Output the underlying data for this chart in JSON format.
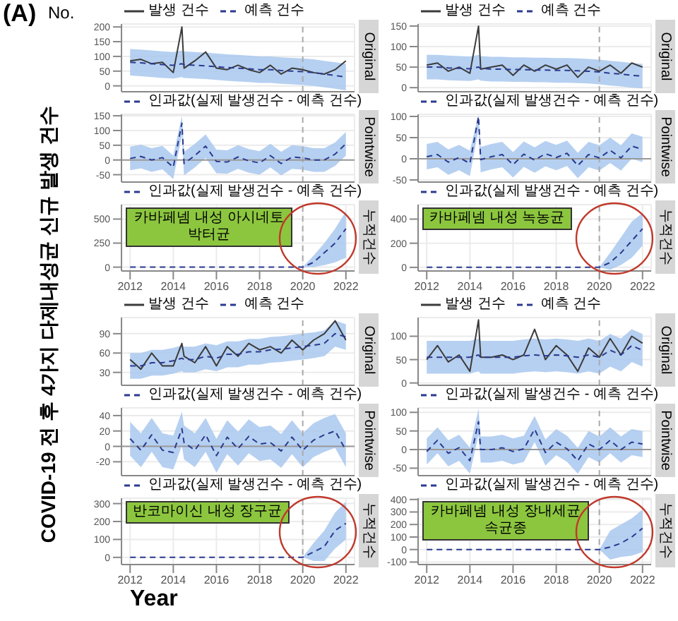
{
  "chart_data": [
    {
      "type": "line",
      "title": "Original",
      "ylabel": "COVID-19 전 후 4가지 다제내성균 신규 발생 건수",
      "annotations": [
        "(A)",
        "No."
      ],
      "legend": "top left",
      "grid": true,
      "tick_labels": "y",
      "xlim": [
        2011.6,
        2022.4
      ],
      "xticks": [
        2012,
        2014,
        2016,
        2018,
        2020,
        2022
      ],
      "ylim": [
        -20,
        210
      ],
      "yticks": [
        0,
        50,
        100,
        150,
        200
      ],
      "ref_lines": [
        {
          "axis": "x",
          "value": 2020,
          "color": "#aaaaaa",
          "line_style": "dashed"
        }
      ],
      "x": [
        2012,
        2012.5,
        2013,
        2013.5,
        2014,
        2014.4,
        2014.5,
        2015,
        2015.5,
        2016,
        2016.5,
        2017,
        2017.5,
        2018,
        2018.5,
        2019,
        2019.5,
        2020,
        2020.5,
        2021,
        2021.5,
        2022
      ],
      "series": [
        {
          "name": "발생 건수",
          "color": "#3b3b3b",
          "line_style": "solid",
          "values": [
            85,
            90,
            75,
            80,
            45,
            200,
            60,
            85,
            115,
            60,
            55,
            70,
            55,
            45,
            70,
            40,
            60,
            55,
            45,
            40,
            55,
            85
          ]
        },
        {
          "name": "예측 건수",
          "color": "#2b3a8f",
          "line_style": "dashed",
          "values": [
            80,
            78,
            75,
            72,
            70,
            75,
            72,
            70,
            68,
            65,
            62,
            60,
            58,
            55,
            55,
            52,
            50,
            48,
            45,
            40,
            35,
            30
          ],
          "lower": [
            35,
            33,
            30,
            27,
            25,
            30,
            27,
            25,
            23,
            20,
            17,
            15,
            13,
            10,
            10,
            7,
            5,
            3,
            0,
            -5,
            -10,
            -15
          ],
          "upper": [
            125,
            123,
            120,
            117,
            115,
            120,
            117,
            115,
            113,
            110,
            107,
            105,
            103,
            100,
            100,
            97,
            95,
            93,
            90,
            85,
            80,
            75
          ]
        }
      ]
    },
    {
      "type": "line",
      "title": "Pointwise",
      "legend": "top left",
      "grid": true,
      "tick_labels": "y",
      "xlim": [
        2011.6,
        2022.4
      ],
      "xticks": [
        2012,
        2014,
        2016,
        2018,
        2020,
        2022
      ],
      "ylim": [
        -75,
        155
      ],
      "yticks": [
        -50,
        0,
        50,
        100,
        150
      ],
      "ref_lines": [
        {
          "axis": "x",
          "value": 2020,
          "color": "#aaaaaa",
          "line_style": "dashed"
        },
        {
          "axis": "y",
          "value": 0,
          "color": "#999999",
          "line_style": "solid"
        }
      ],
      "x": [
        2012,
        2012.5,
        2013,
        2013.5,
        2014,
        2014.4,
        2014.5,
        2015,
        2015.5,
        2016,
        2016.5,
        2017,
        2017.5,
        2018,
        2018.5,
        2019,
        2019.5,
        2020,
        2020.5,
        2021,
        2021.5,
        2022
      ],
      "series": [
        {
          "name": "인과값(실제 발생건수 - 예측 건수)",
          "color": "#2b3a8f",
          "line_style": "dashed",
          "values": [
            5,
            12,
            0,
            8,
            -25,
            125,
            -12,
            15,
            47,
            -5,
            -7,
            10,
            -3,
            -10,
            15,
            -12,
            10,
            7,
            0,
            0,
            20,
            55
          ],
          "lower": [
            -35,
            -28,
            -40,
            -32,
            -65,
            85,
            -52,
            -25,
            7,
            -45,
            -47,
            -30,
            -43,
            -50,
            -25,
            -52,
            -30,
            -33,
            -40,
            -40,
            -20,
            15
          ],
          "upper": [
            45,
            52,
            40,
            48,
            15,
            150,
            28,
            55,
            87,
            35,
            33,
            50,
            37,
            30,
            55,
            28,
            50,
            47,
            40,
            40,
            60,
            95
          ]
        }
      ]
    },
    {
      "type": "line",
      "title": "누적건수",
      "annotations": [
        "카바페넴 내성 아시네토박터균"
      ],
      "legend": "top left",
      "grid": true,
      "xlim": [
        2011.6,
        2022.4
      ],
      "xticks": [
        2012,
        2014,
        2016,
        2018,
        2020,
        2022
      ],
      "ylim": [
        -40,
        650
      ],
      "yticks": [
        0,
        250,
        500
      ],
      "ref_lines": [
        {
          "axis": "x",
          "value": 2020,
          "color": "#aaaaaa",
          "line_style": "dashed"
        }
      ],
      "x": [
        2012,
        2012.5,
        2013,
        2013.5,
        2014,
        2014.4,
        2014.5,
        2015,
        2015.5,
        2016,
        2016.5,
        2017,
        2017.5,
        2018,
        2018.5,
        2019,
        2019.5,
        2020,
        2020.5,
        2021,
        2021.5,
        2022
      ],
      "series": [
        {
          "name": "인과값(실제 발생건수 - 예측 건수)",
          "color": "#2b3a8f",
          "line_style": "dashed",
          "values": [
            0,
            0,
            0,
            0,
            0,
            0,
            0,
            0,
            0,
            0,
            0,
            0,
            0,
            0,
            0,
            0,
            0,
            0,
            50,
            150,
            250,
            400
          ],
          "lower": [
            0,
            0,
            0,
            0,
            0,
            0,
            0,
            0,
            0,
            0,
            0,
            0,
            0,
            0,
            0,
            0,
            0,
            0,
            0,
            20,
            50,
            100
          ],
          "upper": [
            0,
            0,
            0,
            0,
            0,
            0,
            0,
            0,
            0,
            0,
            0,
            0,
            0,
            0,
            0,
            0,
            0,
            0,
            120,
            250,
            400,
            580
          ]
        }
      ]
    },
    {
      "type": "line",
      "title": "Original",
      "legend": "top left",
      "grid": true,
      "tick_labels": "y",
      "xlim": [
        2011.6,
        2022.4
      ],
      "xticks": [
        2012,
        2014,
        2016,
        2018,
        2020,
        2022
      ],
      "ylim": [
        -10,
        155
      ],
      "yticks": [
        0,
        50,
        100,
        150
      ],
      "ref_lines": [
        {
          "axis": "x",
          "value": 2020,
          "color": "#aaaaaa",
          "line_style": "dashed"
        }
      ],
      "x": [
        2012,
        2012.5,
        2013,
        2013.5,
        2014,
        2014.4,
        2014.5,
        2015,
        2015.5,
        2016,
        2016.5,
        2017,
        2017.5,
        2018,
        2018.5,
        2019,
        2019.5,
        2020,
        2020.5,
        2021,
        2021.5,
        2022
      ],
      "series": [
        {
          "name": "발생 건수",
          "color": "#3b3b3b",
          "line_style": "solid",
          "values": [
            55,
            60,
            40,
            50,
            35,
            150,
            45,
            50,
            55,
            30,
            55,
            40,
            55,
            45,
            55,
            25,
            50,
            40,
            55,
            35,
            60,
            50
          ]
        },
        {
          "name": "예측 건수",
          "color": "#2b3a8f",
          "line_style": "dashed",
          "values": [
            50,
            50,
            48,
            47,
            46,
            50,
            47,
            45,
            45,
            44,
            44,
            43,
            43,
            42,
            42,
            41,
            40,
            38,
            35,
            33,
            30,
            28
          ],
          "lower": [
            20,
            20,
            18,
            17,
            16,
            20,
            17,
            15,
            15,
            14,
            14,
            13,
            13,
            12,
            12,
            11,
            10,
            8,
            5,
            3,
            0,
            -2
          ],
          "upper": [
            80,
            80,
            78,
            77,
            76,
            80,
            77,
            75,
            75,
            74,
            74,
            73,
            73,
            72,
            72,
            71,
            70,
            68,
            65,
            63,
            60,
            58
          ]
        }
      ]
    },
    {
      "type": "line",
      "title": "Pointwise",
      "legend": "top left",
      "grid": true,
      "tick_labels": "y",
      "xlim": [
        2011.6,
        2022.4
      ],
      "xticks": [
        2012,
        2014,
        2016,
        2018,
        2020,
        2022
      ],
      "ylim": [
        -55,
        105
      ],
      "yticks": [
        -50,
        0,
        50,
        100
      ],
      "ref_lines": [
        {
          "axis": "x",
          "value": 2020,
          "color": "#aaaaaa",
          "line_style": "dashed"
        },
        {
          "axis": "y",
          "value": 0,
          "color": "#999999",
          "line_style": "solid"
        }
      ],
      "x": [
        2012,
        2012.5,
        2013,
        2013.5,
        2014,
        2014.4,
        2014.5,
        2015,
        2015.5,
        2016,
        2016.5,
        2017,
        2017.5,
        2018,
        2018.5,
        2019,
        2019.5,
        2020,
        2020.5,
        2021,
        2021.5,
        2022
      ],
      "series": [
        {
          "name": "인과값(실제 발생건수 - 예측 건수)",
          "color": "#2b3a8f",
          "line_style": "dashed",
          "values": [
            5,
            10,
            -8,
            3,
            -11,
            100,
            -2,
            5,
            10,
            -14,
            11,
            -3,
            12,
            3,
            13,
            -16,
            10,
            2,
            20,
            2,
            30,
            22
          ],
          "lower": [
            -25,
            -20,
            -38,
            -27,
            -41,
            70,
            -32,
            -25,
            -20,
            -44,
            -19,
            -33,
            -18,
            -27,
            -17,
            -46,
            -20,
            -28,
            -10,
            -28,
            0,
            -8
          ],
          "upper": [
            35,
            40,
            22,
            33,
            19,
            104,
            28,
            35,
            40,
            16,
            41,
            27,
            42,
            33,
            43,
            14,
            40,
            32,
            50,
            32,
            60,
            52
          ]
        }
      ]
    },
    {
      "type": "line",
      "title": "누적건수",
      "annotations": [
        "카바페넴 내성 녹농균"
      ],
      "legend": "top left",
      "grid": true,
      "xlim": [
        2011.6,
        2022.4
      ],
      "xticks": [
        2012,
        2014,
        2016,
        2018,
        2020,
        2022
      ],
      "ylim": [
        -30,
        520
      ],
      "yticks": [
        0,
        200,
        400
      ],
      "ref_lines": [
        {
          "axis": "x",
          "value": 2020,
          "color": "#aaaaaa",
          "line_style": "dashed"
        }
      ],
      "x": [
        2012,
        2012.5,
        2013,
        2013.5,
        2014,
        2014.4,
        2014.5,
        2015,
        2015.5,
        2016,
        2016.5,
        2017,
        2017.5,
        2018,
        2018.5,
        2019,
        2019.5,
        2020,
        2020.5,
        2021,
        2021.5,
        2022
      ],
      "series": [
        {
          "name": "인과값(실제 발생건수 - 예측 건수)",
          "color": "#2b3a8f",
          "line_style": "dashed",
          "values": [
            0,
            0,
            0,
            0,
            0,
            0,
            0,
            0,
            0,
            0,
            0,
            0,
            0,
            0,
            0,
            0,
            0,
            0,
            40,
            120,
            220,
            320
          ],
          "lower": [
            0,
            0,
            0,
            0,
            0,
            0,
            0,
            0,
            0,
            0,
            0,
            0,
            0,
            0,
            0,
            0,
            0,
            0,
            -20,
            20,
            80,
            180
          ],
          "upper": [
            0,
            0,
            0,
            0,
            0,
            0,
            0,
            0,
            0,
            0,
            0,
            0,
            0,
            0,
            0,
            0,
            0,
            0,
            120,
            250,
            380,
            450
          ]
        }
      ]
    },
    {
      "type": "line",
      "title": "Original",
      "legend": "top left",
      "grid": true,
      "tick_labels": "y",
      "xlim": [
        2011.6,
        2022.4
      ],
      "xticks": [
        2012,
        2014,
        2016,
        2018,
        2020,
        2022
      ],
      "ylim": [
        10,
        115
      ],
      "yticks": [
        30,
        60,
        90
      ],
      "ref_lines": [
        {
          "axis": "x",
          "value": 2020,
          "color": "#aaaaaa",
          "line_style": "dashed"
        }
      ],
      "x": [
        2012,
        2012.5,
        2013,
        2013.5,
        2014,
        2014.4,
        2014.5,
        2015,
        2015.5,
        2016,
        2016.5,
        2017,
        2017.5,
        2018,
        2018.5,
        2019,
        2019.5,
        2020,
        2020.5,
        2021,
        2021.5,
        2022
      ],
      "series": [
        {
          "name": "발생 건수",
          "color": "#3b3b3b",
          "line_style": "solid",
          "values": [
            50,
            35,
            60,
            40,
            40,
            75,
            55,
            45,
            70,
            40,
            70,
            55,
            75,
            65,
            70,
            60,
            80,
            65,
            80,
            90,
            110,
            80
          ]
        },
        {
          "name": "예측 건수",
          "color": "#2b3a8f",
          "line_style": "dashed",
          "values": [
            40,
            40,
            45,
            45,
            48,
            52,
            50,
            50,
            55,
            52,
            58,
            58,
            62,
            62,
            65,
            66,
            68,
            70,
            72,
            75,
            90,
            85
          ],
          "lower": [
            20,
            20,
            25,
            25,
            28,
            32,
            30,
            30,
            35,
            32,
            38,
            38,
            42,
            42,
            45,
            46,
            48,
            50,
            52,
            55,
            70,
            65
          ],
          "upper": [
            60,
            60,
            65,
            65,
            68,
            72,
            70,
            70,
            75,
            72,
            78,
            78,
            82,
            82,
            85,
            86,
            88,
            90,
            92,
            95,
            110,
            105
          ]
        }
      ]
    },
    {
      "type": "line",
      "title": "Pointwise",
      "legend": "top left",
      "grid": true,
      "tick_labels": "y",
      "xlim": [
        2011.6,
        2022.4
      ],
      "xticks": [
        2012,
        2014,
        2016,
        2018,
        2020,
        2022
      ],
      "ylim": [
        -38,
        50
      ],
      "yticks": [
        -20,
        0,
        20,
        40
      ],
      "ref_lines": [
        {
          "axis": "x",
          "value": 2020,
          "color": "#aaaaaa",
          "line_style": "dashed"
        },
        {
          "axis": "y",
          "value": 0,
          "color": "#999999",
          "line_style": "solid"
        }
      ],
      "x": [
        2012,
        2012.5,
        2013,
        2013.5,
        2014,
        2014.4,
        2014.5,
        2015,
        2015.5,
        2016,
        2016.5,
        2017,
        2017.5,
        2018,
        2018.5,
        2019,
        2019.5,
        2020,
        2020.5,
        2021,
        2021.5,
        2022
      ],
      "series": [
        {
          "name": "인과값(실제 발생건수 - 예측 건수)",
          "color": "#2b3a8f",
          "line_style": "dashed",
          "values": [
            10,
            -5,
            15,
            -5,
            -8,
            23,
            5,
            -5,
            15,
            -12,
            12,
            -3,
            13,
            3,
            5,
            -6,
            12,
            -5,
            8,
            15,
            20,
            -5
          ],
          "lower": [
            -12,
            -27,
            -7,
            -27,
            -30,
            1,
            -17,
            -27,
            -7,
            -34,
            -10,
            -25,
            -9,
            -19,
            -17,
            -28,
            -10,
            -27,
            -14,
            -7,
            -2,
            -27
          ],
          "upper": [
            32,
            17,
            37,
            17,
            14,
            45,
            27,
            17,
            37,
            10,
            34,
            19,
            35,
            25,
            27,
            16,
            34,
            17,
            30,
            37,
            42,
            17
          ]
        }
      ]
    },
    {
      "type": "line",
      "title": "누적건수",
      "xlabel": "Year",
      "annotations": [
        "반코마이신 내성 장구균"
      ],
      "legend": "top left",
      "grid": true,
      "xlim": [
        2011.6,
        2022.4
      ],
      "xticks": [
        2012,
        2014,
        2016,
        2018,
        2020,
        2022
      ],
      "ylim": [
        -40,
        330
      ],
      "yticks": [
        0,
        100,
        200,
        300
      ],
      "ref_lines": [
        {
          "axis": "x",
          "value": 2020,
          "color": "#aaaaaa",
          "line_style": "dashed"
        }
      ],
      "x": [
        2012,
        2012.5,
        2013,
        2013.5,
        2014,
        2014.4,
        2014.5,
        2015,
        2015.5,
        2016,
        2016.5,
        2017,
        2017.5,
        2018,
        2018.5,
        2019,
        2019.5,
        2020,
        2020.5,
        2021,
        2021.5,
        2022
      ],
      "series": [
        {
          "name": "인과값(실제 발생건수 - 예측 건수)",
          "color": "#2b3a8f",
          "line_style": "dashed",
          "values": [
            0,
            0,
            0,
            0,
            0,
            0,
            0,
            0,
            0,
            0,
            0,
            0,
            0,
            0,
            0,
            0,
            0,
            0,
            30,
            60,
            150,
            190
          ],
          "lower": [
            0,
            0,
            0,
            0,
            0,
            0,
            0,
            0,
            0,
            0,
            0,
            0,
            0,
            0,
            0,
            0,
            0,
            0,
            -20,
            -20,
            50,
            100
          ],
          "upper": [
            0,
            0,
            0,
            0,
            0,
            0,
            0,
            0,
            0,
            0,
            0,
            0,
            0,
            0,
            0,
            0,
            0,
            0,
            80,
            150,
            250,
            310
          ]
        }
      ]
    },
    {
      "type": "line",
      "title": "Original",
      "legend": "top left",
      "grid": true,
      "tick_labels": "y",
      "xlim": [
        2011.6,
        2022.4
      ],
      "xticks": [
        2012,
        2014,
        2016,
        2018,
        2020,
        2022
      ],
      "ylim": [
        -5,
        140
      ],
      "yticks": [
        0,
        50,
        100
      ],
      "ref_lines": [
        {
          "axis": "x",
          "value": 2020,
          "color": "#aaaaaa",
          "line_style": "dashed"
        }
      ],
      "x": [
        2012,
        2012.5,
        2013,
        2013.5,
        2014,
        2014.4,
        2014.5,
        2015,
        2015.5,
        2016,
        2016.5,
        2017,
        2017.5,
        2018,
        2018.5,
        2019,
        2019.5,
        2020,
        2020.5,
        2021,
        2021.5,
        2022
      ],
      "series": [
        {
          "name": "발생 건수",
          "color": "#3b3b3b",
          "line_style": "solid",
          "values": [
            50,
            80,
            45,
            60,
            25,
            135,
            55,
            55,
            60,
            50,
            60,
            115,
            50,
            80,
            60,
            25,
            75,
            55,
            95,
            60,
            100,
            85
          ]
        },
        {
          "name": "예측 건수",
          "color": "#2b3a8f",
          "line_style": "dashed",
          "values": [
            55,
            55,
            55,
            55,
            55,
            60,
            55,
            55,
            55,
            55,
            58,
            60,
            58,
            60,
            58,
            55,
            60,
            55,
            70,
            60,
            80,
            70
          ],
          "lower": [
            20,
            20,
            20,
            20,
            20,
            25,
            20,
            20,
            20,
            20,
            23,
            25,
            23,
            25,
            23,
            20,
            25,
            20,
            35,
            25,
            45,
            35
          ],
          "upper": [
            90,
            90,
            90,
            90,
            90,
            95,
            90,
            90,
            90,
            90,
            93,
            95,
            93,
            95,
            93,
            90,
            95,
            90,
            105,
            95,
            115,
            105
          ]
        }
      ]
    },
    {
      "type": "line",
      "title": "Pointwise",
      "legend": "top left",
      "grid": true,
      "tick_labels": "y",
      "xlim": [
        2011.6,
        2022.4
      ],
      "xticks": [
        2012,
        2014,
        2016,
        2018,
        2020,
        2022
      ],
      "ylim": [
        -70,
        112
      ],
      "yticks": [
        -50,
        0,
        50,
        100
      ],
      "ref_lines": [
        {
          "axis": "x",
          "value": 2020,
          "color": "#aaaaaa",
          "line_style": "dashed"
        },
        {
          "axis": "y",
          "value": 0,
          "color": "#999999",
          "line_style": "solid"
        }
      ],
      "x": [
        2012,
        2012.5,
        2013,
        2013.5,
        2014,
        2014.4,
        2014.5,
        2015,
        2015.5,
        2016,
        2016.5,
        2017,
        2017.5,
        2018,
        2018.5,
        2019,
        2019.5,
        2020,
        2020.5,
        2021,
        2021.5,
        2022
      ],
      "series": [
        {
          "name": "인과값(실제 발생건수 - 예측 건수)",
          "color": "#2b3a8f",
          "line_style": "dashed",
          "values": [
            -5,
            25,
            -10,
            5,
            -30,
            75,
            0,
            0,
            5,
            -5,
            2,
            55,
            -8,
            20,
            2,
            -30,
            15,
            0,
            25,
            0,
            20,
            15
          ],
          "lower": [
            -40,
            -10,
            -45,
            -30,
            -65,
            40,
            -35,
            -35,
            -30,
            -40,
            -33,
            20,
            -43,
            -15,
            -33,
            -65,
            -20,
            -35,
            -10,
            -35,
            -15,
            -20
          ],
          "upper": [
            30,
            60,
            25,
            40,
            5,
            110,
            35,
            35,
            40,
            30,
            37,
            90,
            27,
            55,
            37,
            5,
            50,
            35,
            60,
            35,
            55,
            50
          ]
        }
      ]
    },
    {
      "type": "line",
      "title": "누적건수",
      "annotations": [
        "카바페넴 내성 장내세균속균종"
      ],
      "legend": "top left",
      "grid": true,
      "xlim": [
        2011.6,
        2022.4
      ],
      "xticks": [
        2012,
        2014,
        2016,
        2018,
        2020,
        2022
      ],
      "ylim": [
        -120,
        410
      ],
      "yticks": [
        -100,
        0,
        100,
        200,
        300,
        400
      ],
      "ref_lines": [
        {
          "axis": "x",
          "value": 2020,
          "color": "#aaaaaa",
          "line_style": "dashed"
        }
      ],
      "x": [
        2012,
        2012.5,
        2013,
        2013.5,
        2014,
        2014.4,
        2014.5,
        2015,
        2015.5,
        2016,
        2016.5,
        2017,
        2017.5,
        2018,
        2018.5,
        2019,
        2019.5,
        2020,
        2020.5,
        2021,
        2021.5,
        2022
      ],
      "series": [
        {
          "name": "인과값(실제 발생건수 - 예측 건수)",
          "color": "#2b3a8f",
          "line_style": "dashed",
          "values": [
            0,
            0,
            0,
            0,
            0,
            0,
            0,
            0,
            0,
            0,
            0,
            0,
            0,
            0,
            0,
            0,
            0,
            0,
            20,
            50,
            100,
            170
          ],
          "lower": [
            0,
            0,
            0,
            0,
            0,
            0,
            0,
            0,
            0,
            0,
            0,
            0,
            0,
            0,
            0,
            0,
            0,
            0,
            -80,
            -60,
            -50,
            -20
          ],
          "upper": [
            0,
            0,
            0,
            0,
            0,
            0,
            0,
            0,
            0,
            0,
            0,
            0,
            0,
            0,
            0,
            0,
            0,
            0,
            150,
            200,
            250,
            320
          ]
        }
      ]
    }
  ]
}
